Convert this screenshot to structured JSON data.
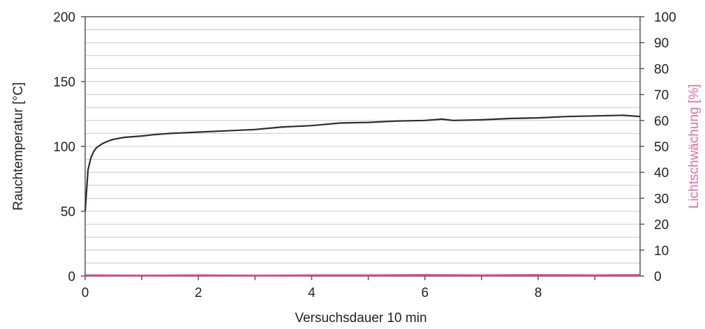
{
  "chart_data": {
    "type": "line",
    "title": "",
    "xlabel": "Versuchsdauer 10 min",
    "ylabel": "Rauchtemperatur [°C]",
    "y2label": "Lichtschwächung [%]",
    "xlim": [
      0,
      9.8
    ],
    "ylim": [
      0,
      200
    ],
    "y2lim": [
      0,
      100
    ],
    "x_ticks": [
      0,
      2,
      4,
      6,
      8
    ],
    "y_ticks": [
      0,
      50,
      100,
      150,
      200
    ],
    "y2_ticks": [
      0,
      10,
      20,
      30,
      40,
      50,
      60,
      70,
      80,
      90,
      100
    ],
    "grid": true,
    "colors": {
      "temperature": "#2b2b3a",
      "light": "#d6449a",
      "grid": "#c8c8c8",
      "axis": "#555555",
      "y2label": "#e46aa8"
    },
    "series": [
      {
        "axis": "left",
        "x": [
          0,
          0.05,
          0.1,
          0.15,
          0.2,
          0.3,
          0.4,
          0.5,
          0.7,
          1.0,
          1.2,
          1.5,
          2.0,
          2.5,
          3.0,
          3.5,
          4.0,
          4.5,
          5.0,
          5.5,
          6.0,
          6.3,
          6.5,
          7.0,
          7.5,
          8.0,
          8.5,
          9.0,
          9.5,
          9.8
        ],
        "values": [
          50,
          82,
          91,
          96,
          99,
          102,
          104,
          105.5,
          107,
          108,
          109,
          110,
          111,
          112,
          113,
          115,
          116,
          118,
          118.5,
          119.5,
          120,
          121,
          120,
          120.5,
          121.5,
          122,
          123,
          123.5,
          124,
          123
        ]
      },
      {
        "axis": "right",
        "x": [
          0,
          1,
          2,
          3,
          4,
          5,
          6,
          7,
          8,
          9,
          9.8
        ],
        "values": [
          0.3,
          0.2,
          0.3,
          0.2,
          0.3,
          0.3,
          0.4,
          0.3,
          0.4,
          0.3,
          0.4
        ]
      }
    ]
  }
}
